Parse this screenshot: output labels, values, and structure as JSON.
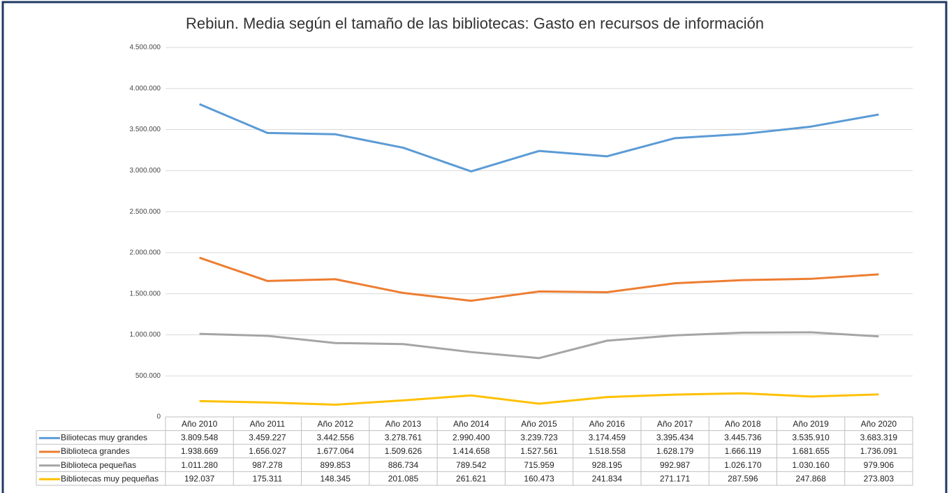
{
  "chart_data": {
    "type": "line",
    "title": "Rebiun. Media según el tamaño de las bibliotecas: Gasto en recursos de información",
    "categories": [
      "Año 2010",
      "Año 2011",
      "Año 2012",
      "Año 2013",
      "Año 2014",
      "Año 2015",
      "Año 2016",
      "Año 2017",
      "Año 2018",
      "Año 2019",
      "Año 2020"
    ],
    "series": [
      {
        "name": "Biliotecas muy grandes",
        "color": "#5b9bd5",
        "values": [
          3809548,
          3459227,
          3442556,
          3278761,
          2990400,
          3239723,
          3174459,
          3395434,
          3445736,
          3535910,
          3683319
        ],
        "value_labels": [
          "3.809.548",
          "3.459.227",
          "3.442.556",
          "3.278.761",
          "2.990.400",
          "3.239.723",
          "3.174.459",
          "3.395.434",
          "3.445.736",
          "3.535.910",
          "3.683.319"
        ]
      },
      {
        "name": "Biblioteca grandes",
        "color": "#ed7d31",
        "values": [
          1938669,
          1656027,
          1677064,
          1509626,
          1414658,
          1527561,
          1518558,
          1628179,
          1666119,
          1681655,
          1736091
        ],
        "value_labels": [
          "1.938.669",
          "1.656.027",
          "1.677.064",
          "1.509.626",
          "1.414.658",
          "1.527.561",
          "1.518.558",
          "1.628.179",
          "1.666.119",
          "1.681.655",
          "1.736.091"
        ]
      },
      {
        "name": "Biblioteca pequeñas",
        "color": "#a5a5a5",
        "values": [
          1011280,
          987278,
          899853,
          886734,
          789542,
          715959,
          928195,
          992987,
          1026170,
          1030160,
          979906
        ],
        "value_labels": [
          "1.011.280",
          "987.278",
          "899.853",
          "886.734",
          "789.542",
          "715.959",
          "928.195",
          "992.987",
          "1.026.170",
          "1.030.160",
          "979.906"
        ]
      },
      {
        "name": "Bibliotecas muy pequeñas",
        "color": "#ffc000",
        "values": [
          192037,
          175311,
          148345,
          201085,
          261621,
          160473,
          241834,
          271171,
          287596,
          247868,
          273803
        ],
        "value_labels": [
          "192.037",
          "175.311",
          "148.345",
          "201.085",
          "261.621",
          "160.473",
          "241.834",
          "271.171",
          "287.596",
          "247.868",
          "273.803"
        ]
      }
    ],
    "ylim": [
      0,
      4500000
    ],
    "yticks": [
      0,
      {
        "value": 500000,
        "label": "500.000"
      },
      {
        "value": 1000000,
        "label": "1.000.000"
      },
      {
        "value": 1500000,
        "label": "1.500.000"
      },
      {
        "value": 2000000,
        "label": "2.000.000"
      },
      {
        "value": 2500000,
        "label": "2.500.000"
      },
      {
        "value": 3000000,
        "label": "3.000.000"
      },
      {
        "value": 3500000,
        "label": "3.500.000"
      },
      {
        "value": 4000000,
        "label": "4.000.000"
      },
      {
        "value": 4500000,
        "label": "4.500.000"
      }
    ],
    "grid": true
  }
}
